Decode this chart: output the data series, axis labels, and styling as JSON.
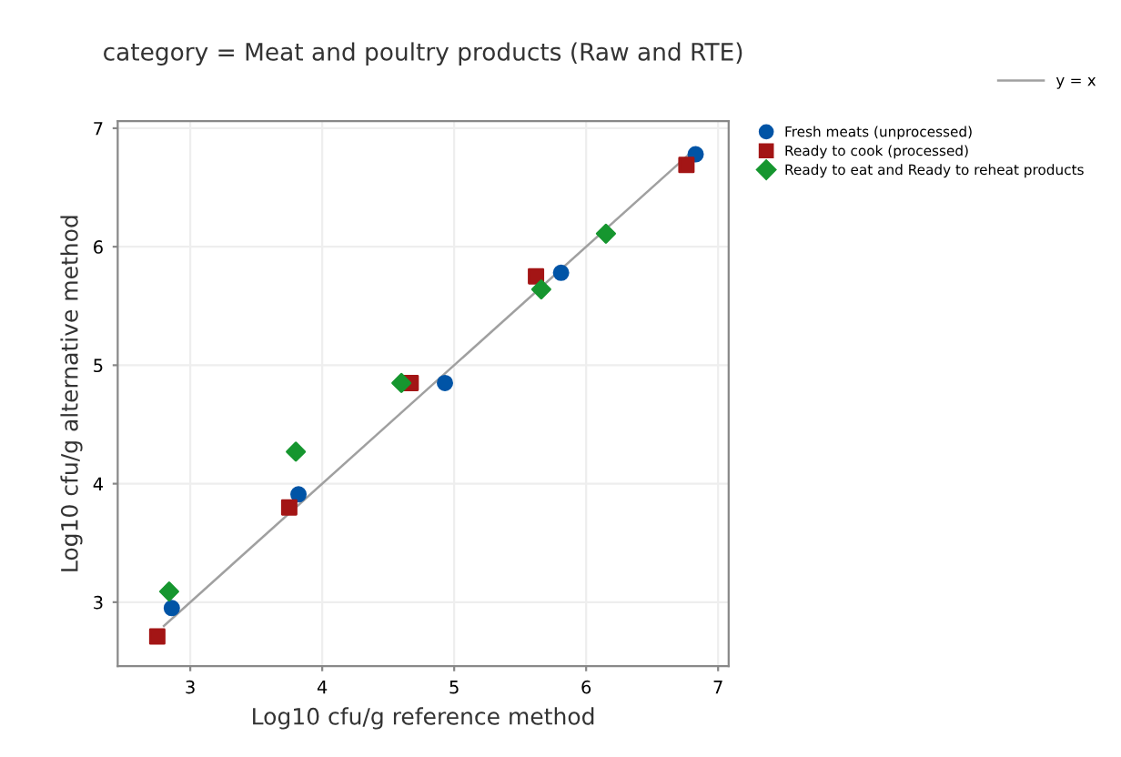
{
  "chart_data": {
    "type": "scatter",
    "title": "category = Meat and poultry products (Raw and RTE)",
    "xlabel": "Log10 cfu/g reference method",
    "ylabel": "Log10 cfu/g alternative method",
    "xlim": [
      2.45,
      7.08
    ],
    "ylim": [
      2.46,
      7.06
    ],
    "xticks": [
      3,
      4,
      5,
      6,
      7
    ],
    "yticks": [
      3,
      4,
      5,
      6,
      7
    ],
    "grid": true,
    "legend": "top right",
    "series": [
      {
        "name": "y = x",
        "type": "line",
        "color": "#a0a0a0",
        "x": [
          2.8,
          6.8
        ],
        "values": [
          2.8,
          6.8
        ]
      },
      {
        "name": "Fresh meats (unprocessed)",
        "color": "#0054a6",
        "marker": "circle",
        "x": [
          2.86,
          3.82,
          4.93,
          5.81,
          6.83
        ],
        "values": [
          2.95,
          3.91,
          4.85,
          5.78,
          6.78
        ]
      },
      {
        "name": "Ready to cook (processed)",
        "color": "#a31515",
        "marker": "square",
        "x": [
          2.75,
          3.75,
          4.67,
          5.62,
          6.76
        ],
        "values": [
          2.71,
          3.8,
          4.85,
          5.75,
          6.69
        ]
      },
      {
        "name": "Ready to eat and Ready to reheat products",
        "color": "#16962f",
        "marker": "diamond",
        "x": [
          2.84,
          3.8,
          4.6,
          5.66,
          6.15
        ],
        "values": [
          3.09,
          4.27,
          4.85,
          5.64,
          6.11
        ]
      }
    ]
  }
}
